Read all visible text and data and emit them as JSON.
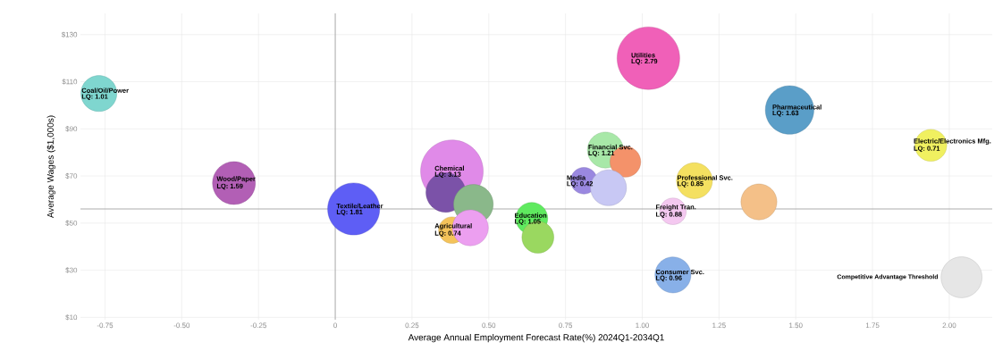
{
  "chart_data": {
    "type": "bubble",
    "xlabel": "Average Annual Employment Forecast Rate(%) 2024Q1-2034Q1",
    "ylabel": "Average Wages ($1,000s)",
    "xlim": [
      -0.83,
      2.14
    ],
    "ylim": [
      9,
      139
    ],
    "xticks": [
      {
        "value": -0.75,
        "label": "-0.75"
      },
      {
        "value": -0.5,
        "label": "-0.50"
      },
      {
        "value": -0.25,
        "label": "-0.25"
      },
      0,
      {
        "value": 0.25,
        "label": "0.25"
      },
      {
        "value": 0.5,
        "label": "0.50"
      },
      {
        "value": 0.75,
        "label": "0.75"
      },
      {
        "value": 1.0,
        "label": "1.00"
      },
      {
        "value": 1.25,
        "label": "1.25"
      },
      {
        "value": 1.5,
        "label": "1.50"
      },
      {
        "value": 1.75,
        "label": "1.75"
      },
      {
        "value": 2.0,
        "label": "2.00"
      }
    ],
    "yticks": [
      {
        "value": 10,
        "label": "$10"
      },
      {
        "value": 30,
        "label": "$30"
      },
      {
        "value": 50,
        "label": "$50"
      },
      {
        "value": 70,
        "label": "$70"
      },
      {
        "value": 90,
        "label": "$90"
      },
      {
        "value": 110,
        "label": "$110"
      },
      {
        "value": 130,
        "label": "$130"
      }
    ],
    "grid": true,
    "ref_lines": [
      {
        "axis": "x",
        "value": 0,
        "color": "#999999"
      },
      {
        "axis": "y",
        "value": 56,
        "color": "#999999"
      }
    ],
    "series": [
      {
        "x": [
          -0.77,
          -0.33,
          0.06,
          0.38,
          0.36,
          0.45,
          0.38,
          0.44,
          0.64,
          0.66,
          0.88,
          0.945,
          0.81,
          0.89,
          1.02,
          1.48,
          1.94,
          1.17,
          1.1,
          1.38,
          1.1
        ],
        "values": [
          105,
          67,
          56,
          72,
          63,
          58,
          47,
          48,
          52,
          44,
          81,
          76,
          68,
          65,
          120,
          98,
          83,
          68,
          55,
          59,
          28
        ],
        "sizes": [
          0.33,
          0.47,
          0.69,
          1,
          0.4,
          0.4,
          0.18,
          0.33,
          0.26,
          0.26,
          0.33,
          0.24,
          0.18,
          0.33,
          1,
          0.6,
          0.26,
          0.33,
          0.18,
          0.33,
          0.33
        ],
        "colors": [
          "#7fd6cf",
          "#b25fb5",
          "#5e5ef5",
          "#e08ae8",
          "#7b52a8",
          "#8ab88a",
          "#f4c35a",
          "#ec9ff0",
          "#5fea5f",
          "#9ad860",
          "#a8e8a8",
          "#f4926a",
          "#9a88e0",
          "#c8c8f4",
          "#f060b8",
          "#5a9ec8",
          "#f0f060",
          "#f4e060",
          "#f4c8f0",
          "#f4c088",
          "#88b0e8"
        ]
      },
      {
        "name": "Competitive Advantage Threshold",
        "color": "#e6e6e6",
        "x": [
          2.04
        ],
        "values": [
          27
        ],
        "sizes": [
          0.43
        ]
      }
    ],
    "annotations": [
      {
        "text": "Coal/Oil/Power",
        "x": -0.77,
        "y": 105
      },
      {
        "text": "LQ: 1.01",
        "x": -0.77,
        "y": 105
      },
      {
        "text": "Wood/Paper",
        "x": -0.33,
        "y": 67
      },
      {
        "text": "LQ: 1.59",
        "x": -0.33,
        "y": 67
      },
      {
        "text": "Textile/Leather",
        "x": 0.06,
        "y": 56
      },
      {
        "text": "LQ: 1.81",
        "x": 0.06,
        "y": 56
      },
      {
        "text": "Chemical",
        "x": 0.38,
        "y": 72
      },
      {
        "text": "LQ: 3.13",
        "x": 0.38,
        "y": 72
      },
      {
        "text": "Agricultural",
        "x": 0.38,
        "y": 47
      },
      {
        "text": "LQ: 0.74",
        "x": 0.38,
        "y": 47
      },
      {
        "text": "Education",
        "x": 0.64,
        "y": 52
      },
      {
        "text": "LQ: 1.05",
        "x": 0.64,
        "y": 52
      },
      {
        "text": "Financial Svc.",
        "x": 0.88,
        "y": 81
      },
      {
        "text": "LQ: 1.21",
        "x": 0.88,
        "y": 81
      },
      {
        "text": "Media",
        "x": 0.81,
        "y": 68
      },
      {
        "text": "LQ: 0.42",
        "x": 0.81,
        "y": 68
      },
      {
        "text": "Utilities",
        "x": 1.02,
        "y": 120
      },
      {
        "text": "LQ: 2.79",
        "x": 1.02,
        "y": 120
      },
      {
        "text": "Pharmaceutical",
        "x": 1.48,
        "y": 98
      },
      {
        "text": "LQ: 1.63",
        "x": 1.48,
        "y": 98
      },
      {
        "text": "Electric/Electronics Mfg.",
        "x": 1.94,
        "y": 83
      },
      {
        "text": "LQ: 0.71",
        "x": 1.94,
        "y": 83
      },
      {
        "text": "Professional Svc.",
        "x": 1.17,
        "y": 68
      },
      {
        "text": "LQ: 0.85",
        "x": 1.17,
        "y": 68
      },
      {
        "text": "Freight Tran.",
        "x": 1.1,
        "y": 55
      },
      {
        "text": "LQ: 0.88",
        "x": 1.1,
        "y": 55
      },
      {
        "text": "Consumer Svc.",
        "x": 1.1,
        "y": 28
      },
      {
        "text": "LQ: 0.96",
        "x": 1.1,
        "y": 28
      }
    ]
  }
}
